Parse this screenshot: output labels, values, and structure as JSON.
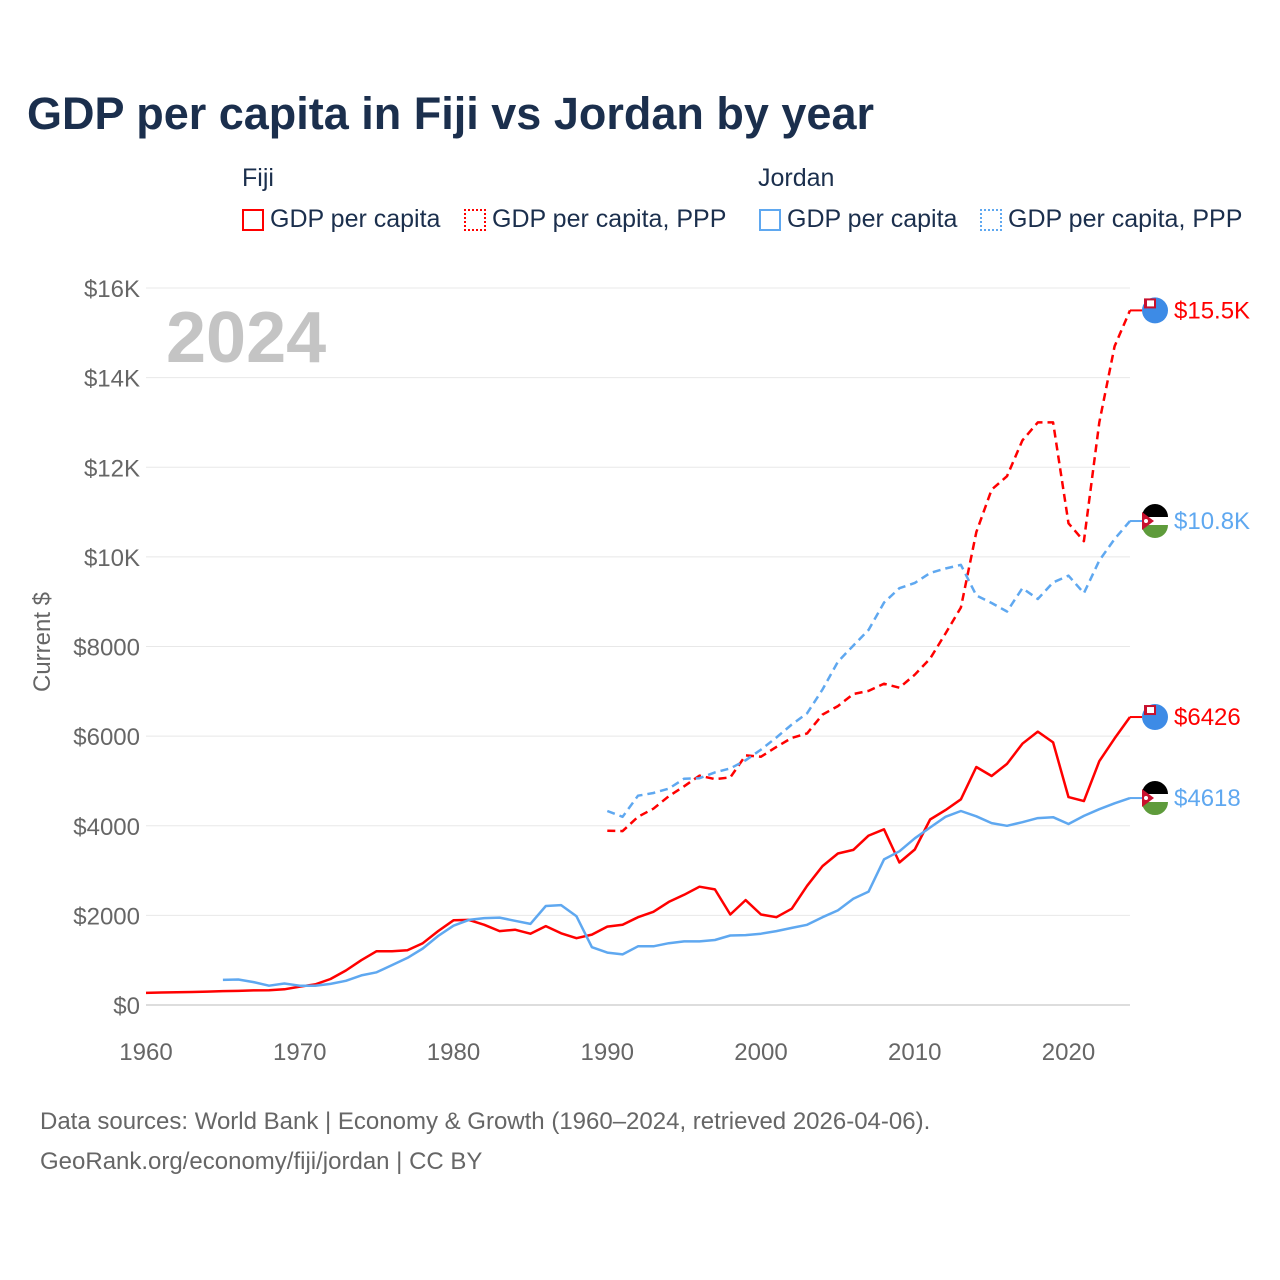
{
  "title": "GDP per capita in Fiji vs Jordan by year",
  "legend": {
    "groups": [
      {
        "name": "Fiji",
        "color": "#ff0000",
        "items": [
          "GDP per capita",
          "GDP per capita, PPP"
        ]
      },
      {
        "name": "Jordan",
        "color": "#5fa8f0",
        "items": [
          "GDP per capita",
          "GDP per capita, PPP"
        ]
      }
    ]
  },
  "year_label": "2024",
  "source_line1": "Data sources: World Bank | Economy & Growth (1960–2024, retrieved 2026-04-06).",
  "source_line2": "GeoRank.org/economy/fiji/jordan | CC BY",
  "chart_data": {
    "type": "line",
    "title": "GDP per capita in Fiji vs Jordan by year",
    "xlabel": "",
    "ylabel": "Current $",
    "xlim": [
      1960,
      2024
    ],
    "ylim": [
      0,
      16000
    ],
    "x_ticks": [
      1960,
      1970,
      1980,
      1990,
      2000,
      2010,
      2020
    ],
    "y_ticks": [
      {
        "v": 0,
        "label": "$0"
      },
      {
        "v": 2000,
        "label": "$2000"
      },
      {
        "v": 4000,
        "label": "$4000"
      },
      {
        "v": 6000,
        "label": "$6000"
      },
      {
        "v": 8000,
        "label": "$8000"
      },
      {
        "v": 10000,
        "label": "$10K"
      },
      {
        "v": 12000,
        "label": "$12K"
      },
      {
        "v": 14000,
        "label": "$14K"
      },
      {
        "v": 16000,
        "label": "$16K"
      }
    ],
    "grid": true,
    "series": [
      {
        "name": "Fiji GDP per capita",
        "color": "#ff0000",
        "dashed": false,
        "start": 1960,
        "end_label": "$6426",
        "values": [
          270,
          280,
          285,
          290,
          300,
          310,
          315,
          325,
          330,
          350,
          410,
          460,
          580,
          770,
          1000,
          1200,
          1200,
          1220,
          1380,
          1650,
          1890,
          1900,
          1790,
          1650,
          1680,
          1590,
          1760,
          1600,
          1490,
          1570,
          1750,
          1790,
          1960,
          2080,
          2300,
          2460,
          2640,
          2580,
          2020,
          2340,
          2020,
          1960,
          2150,
          2660,
          3100,
          3380,
          3460,
          3780,
          3920,
          3180,
          3470,
          4140,
          4350,
          4590,
          5310,
          5110,
          5380,
          5830,
          6100,
          5860,
          4640,
          4550,
          5440,
          5950,
          6426
        ]
      },
      {
        "name": "Jordan GDP per capita",
        "color": "#5fa8f0",
        "dashed": false,
        "start": 1965,
        "end_label": "$4618",
        "values": [
          560,
          570,
          510,
          430,
          480,
          430,
          430,
          470,
          540,
          660,
          730,
          890,
          1050,
          1260,
          1540,
          1770,
          1900,
          1940,
          1950,
          1880,
          1810,
          2210,
          2230,
          1980,
          1290,
          1170,
          1130,
          1310,
          1310,
          1380,
          1420,
          1420,
          1450,
          1550,
          1560,
          1590,
          1650,
          1720,
          1790,
          1960,
          2110,
          2370,
          2530,
          3250,
          3430,
          3720,
          3960,
          4200,
          4330,
          4210,
          4060,
          4000,
          4080,
          4170,
          4190,
          4040,
          4220,
          4370,
          4500,
          4618
        ]
      },
      {
        "name": "Fiji GDP per capita, PPP",
        "color": "#ff0000",
        "dashed": true,
        "start": 1990,
        "end_label": "$15.5K",
        "values": [
          3890,
          3880,
          4200,
          4380,
          4660,
          4880,
          5120,
          5040,
          5080,
          5570,
          5540,
          5760,
          5960,
          6060,
          6480,
          6670,
          6940,
          7010,
          7170,
          7080,
          7370,
          7730,
          8290,
          8870,
          10550,
          11500,
          11800,
          12600,
          13000,
          13000,
          10750,
          10350,
          13000,
          14700,
          15500
        ]
      },
      {
        "name": "Jordan GDP per capita, PPP",
        "color": "#5fa8f0",
        "dashed": true,
        "start": 1990,
        "end_label": "$10.8K",
        "values": [
          4330,
          4200,
          4670,
          4730,
          4830,
          5050,
          5060,
          5190,
          5280,
          5460,
          5700,
          5970,
          6260,
          6510,
          7040,
          7660,
          8020,
          8370,
          8980,
          9300,
          9420,
          9640,
          9740,
          9820,
          9140,
          8970,
          8780,
          9300,
          9060,
          9430,
          9580,
          9190,
          9920,
          10400,
          10800
        ]
      }
    ]
  }
}
